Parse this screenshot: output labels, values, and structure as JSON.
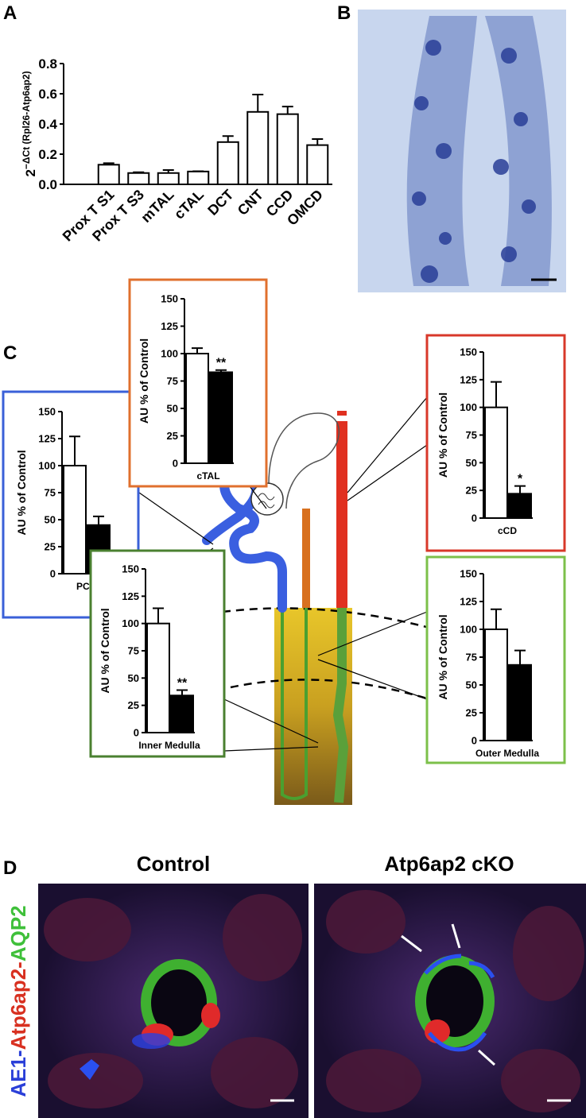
{
  "panel_labels": {
    "a": "A",
    "b": "B",
    "c": "C",
    "d": "D"
  },
  "panel_d": {
    "titles": [
      "Control",
      "Atp6ap2 cKO"
    ],
    "stain_parts": [
      {
        "text": "AE1-",
        "color": "#2a3fd8"
      },
      {
        "text": "Atp6ap2-",
        "color": "#d83020"
      },
      {
        "text": "AQP2",
        "color": "#3fc03a"
      }
    ]
  },
  "chart_data": [
    {
      "type": "bar",
      "ylabel_base": "2",
      "ylabel_exp": "−ΔCt (Rpl26-Atp6ap2)",
      "categories": [
        "Prox T S1",
        "Prox T S3",
        "mTAL",
        "cTAL",
        "DCT",
        "CNT",
        "CCD",
        "OMCD"
      ],
      "values": [
        0.13,
        0.075,
        0.075,
        0.085,
        0.28,
        0.48,
        0.465,
        0.26
      ],
      "errors": [
        0.01,
        0.005,
        0.02,
        0.002,
        0.04,
        0.115,
        0.05,
        0.04
      ],
      "color": "#ffffff",
      "ylim": [
        0,
        0.8
      ],
      "yticks": [
        {
          "value": 0,
          "label": "0.0"
        },
        0.2,
        0.4,
        0.6,
        0.8
      ]
    },
    {
      "type": "bar",
      "x_label": "PCT",
      "y_label": "AU % of Control",
      "values": [
        100,
        45
      ],
      "errors": [
        27,
        8
      ],
      "colors": [
        "#ffffff",
        "#000000"
      ],
      "ylim": [
        0,
        150
      ],
      "yticks": [
        0,
        25,
        50,
        75,
        100,
        125,
        150
      ]
    },
    {
      "type": "bar",
      "x_label": "cTAL",
      "y_label": "AU % of Control",
      "values": [
        100,
        83
      ],
      "errors": [
        5,
        2
      ],
      "colors": [
        "#ffffff",
        "#000000"
      ],
      "annotation": "**",
      "ylim": [
        0,
        150
      ],
      "yticks": [
        0,
        25,
        50,
        75,
        100,
        125,
        150
      ]
    },
    {
      "type": "bar",
      "x_label": "cCD",
      "y_label": "AU % of Control",
      "values": [
        100,
        22
      ],
      "errors": [
        23,
        7
      ],
      "colors": [
        "#ffffff",
        "#000000"
      ],
      "annotation": "*",
      "ylim": [
        0,
        150
      ],
      "yticks": [
        0,
        25,
        50,
        75,
        100,
        125,
        150
      ]
    },
    {
      "type": "bar",
      "x_label": "Inner Medulla",
      "y_label": "AU % of Control",
      "values": [
        100,
        34
      ],
      "errors": [
        14,
        5
      ],
      "colors": [
        "#ffffff",
        "#000000"
      ],
      "annotation": "**",
      "ylim": [
        0,
        150
      ],
      "yticks": [
        0,
        25,
        50,
        75,
        100,
        125,
        150
      ]
    },
    {
      "type": "bar",
      "x_label": "Outer Medulla",
      "y_label": "AU % of Control",
      "values": [
        100,
        68
      ],
      "errors": [
        18,
        13
      ],
      "colors": [
        "#ffffff",
        "#000000"
      ],
      "ylim": [
        0,
        150
      ],
      "yticks": [
        0,
        25,
        50,
        75,
        100,
        125,
        150
      ]
    }
  ]
}
